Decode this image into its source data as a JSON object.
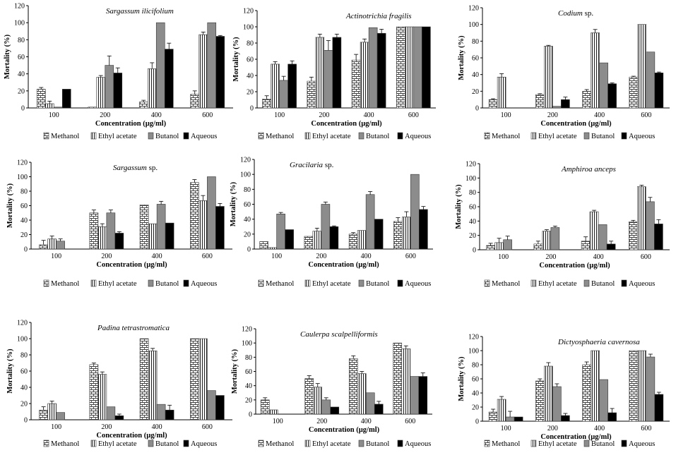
{
  "figure": {
    "y_axis_label": "Mortality (%)",
    "x_axis_label": "Concentration (µg/ml)",
    "y_ticks": [
      "0",
      "20",
      "40",
      "60",
      "80",
      "100",
      "120"
    ]
  },
  "chart_data": [
    {
      "type": "bar",
      "title": "Sargassum ilicifolium",
      "title_parts": [
        {
          "text": "Sargassum ilicifolium",
          "italic": true
        }
      ],
      "xlabel": "Concentration (µg/ml)",
      "ylabel": "Mortality (%)",
      "ylim": [
        0,
        120
      ],
      "categories": [
        "100",
        "200",
        "400",
        "600"
      ],
      "series": [
        {
          "name": "Methanol",
          "values": [
            22,
            1,
            7,
            16
          ],
          "errors": [
            2,
            0,
            2,
            4
          ]
        },
        {
          "name": "Ethyl acetate",
          "values": [
            5,
            36,
            46,
            86
          ],
          "errors": [
            3,
            2,
            7,
            3
          ]
        },
        {
          "name": "Butanol",
          "values": [
            1,
            50,
            100,
            100
          ],
          "errors": [
            0,
            11,
            0,
            0
          ]
        },
        {
          "name": "Aqueous",
          "values": [
            22,
            41,
            69,
            84
          ],
          "errors": [
            0,
            6,
            7,
            1
          ]
        }
      ]
    },
    {
      "type": "bar",
      "title": "Actinotrichia fragilis",
      "title_parts": [
        {
          "text": "Actinotrichia fragilis",
          "italic": true
        }
      ],
      "xlabel": "Concentration (µg/ml)",
      "ylabel": "Mortality (%)",
      "ylim": [
        0,
        120
      ],
      "categories": [
        "100",
        "200",
        "400",
        "600"
      ],
      "series": [
        {
          "name": "Methanol",
          "values": [
            11,
            33,
            59,
            100
          ],
          "errors": [
            4,
            5,
            7,
            0
          ]
        },
        {
          "name": "Ethyl acetate",
          "values": [
            54,
            87,
            81,
            100
          ],
          "errors": [
            3,
            4,
            4,
            0
          ]
        },
        {
          "name": "Butanol",
          "values": [
            34,
            71,
            99,
            100
          ],
          "errors": [
            5,
            12,
            0,
            0
          ]
        },
        {
          "name": "Aqueous",
          "values": [
            54,
            87,
            92,
            100
          ],
          "errors": [
            4,
            4,
            5,
            0
          ]
        }
      ]
    },
    {
      "type": "bar",
      "title": "Codium sp.",
      "title_parts": [
        {
          "text": "Codium",
          "italic": true
        },
        {
          "text": " sp.",
          "italic": false
        }
      ],
      "xlabel": "Concentration (µg/ml)",
      "ylabel": "Mortality (%)",
      "ylim": [
        0,
        120
      ],
      "categories": [
        "100",
        "200",
        "400",
        "600"
      ],
      "series": [
        {
          "name": "Methanol",
          "values": [
            10,
            16,
            20,
            37
          ],
          "errors": [
            1,
            1,
            2,
            1
          ]
        },
        {
          "name": "Ethyl acetate",
          "values": [
            37,
            74,
            90,
            100
          ],
          "errors": [
            4,
            1,
            4,
            0
          ]
        },
        {
          "name": "Butanol",
          "values": [
            0,
            2,
            54,
            67
          ],
          "errors": [
            0,
            0,
            0,
            0
          ]
        },
        {
          "name": "Aqueous",
          "values": [
            0,
            10,
            29,
            42
          ],
          "errors": [
            0,
            3,
            1,
            1
          ]
        }
      ]
    },
    {
      "type": "bar",
      "title": "Sargassum sp.",
      "title_parts": [
        {
          "text": "Sargassum",
          "italic": true
        },
        {
          "text": " sp.",
          "italic": false
        }
      ],
      "xlabel": "Concentration (µg/ml)",
      "ylabel": "Mortality (%)",
      "ylim": [
        0,
        120
      ],
      "categories": [
        "100",
        "200",
        "400",
        "600"
      ],
      "series": [
        {
          "name": "Methanol",
          "values": [
            6,
            50,
            61,
            92
          ],
          "errors": [
            6,
            4,
            0,
            4
          ]
        },
        {
          "name": "Ethyl acetate",
          "values": [
            14,
            31,
            35,
            67
          ],
          "errors": [
            4,
            4,
            0,
            7
          ]
        },
        {
          "name": "Butanol",
          "values": [
            11,
            50,
            62,
            100
          ],
          "errors": [
            3,
            4,
            4,
            0
          ]
        },
        {
          "name": "Aqueous",
          "values": [
            0,
            22,
            36,
            59
          ],
          "errors": [
            0,
            2,
            0,
            4
          ]
        }
      ]
    },
    {
      "type": "bar",
      "title": "Gracilaria sp.",
      "title_parts": [
        {
          "text": "Gracilaria",
          "italic": true
        },
        {
          "text": " sp.",
          "italic": false
        }
      ],
      "xlabel": "Concentration (µg/ml)",
      "ylabel": "Mortality (%)",
      "ylim": [
        0,
        120
      ],
      "categories": [
        "100",
        "200",
        "400",
        "600"
      ],
      "series": [
        {
          "name": "Methanol",
          "values": [
            10,
            17,
            20,
            37
          ],
          "errors": [
            0,
            0,
            2,
            5
          ]
        },
        {
          "name": "Ethyl acetate",
          "values": [
            2,
            24,
            25,
            43
          ],
          "errors": [
            0,
            4,
            0,
            7
          ]
        },
        {
          "name": "Butanol",
          "values": [
            47,
            60,
            73,
            100
          ],
          "errors": [
            2,
            3,
            4,
            0
          ]
        },
        {
          "name": "Aqueous",
          "values": [
            26,
            30,
            40,
            53
          ],
          "errors": [
            0,
            1,
            0,
            4
          ]
        }
      ]
    },
    {
      "type": "bar",
      "title": "Amphiroa anceps",
      "title_parts": [
        {
          "text": "Amphiroa anceps",
          "italic": true
        }
      ],
      "xlabel": "Concentration (µg/ml)",
      "ylabel": "Mortality (%)",
      "ylim": [
        0,
        120
      ],
      "categories": [
        "100",
        "200",
        "400",
        "600"
      ],
      "series": [
        {
          "name": "Methanol",
          "values": [
            6,
            8,
            12,
            39
          ],
          "errors": [
            3,
            4,
            6,
            2
          ]
        },
        {
          "name": "Ethyl acetate",
          "values": [
            10,
            26,
            53,
            88
          ],
          "errors": [
            6,
            2,
            2,
            2
          ]
        },
        {
          "name": "Butanol",
          "values": [
            14,
            31,
            35,
            67
          ],
          "errors": [
            5,
            2,
            0,
            6
          ]
        },
        {
          "name": "Aqueous",
          "values": [
            0,
            0,
            8,
            36
          ],
          "errors": [
            0,
            0,
            4,
            6
          ]
        }
      ]
    },
    {
      "type": "bar",
      "title": "Padina tetrastromatica",
      "title_parts": [
        {
          "text": "Padina tetrastromatica",
          "italic": true
        }
      ],
      "xlabel": "Concentration (µg/ml)",
      "ylabel": "Mortality (%)",
      "ylim": [
        0,
        120
      ],
      "categories": [
        "100",
        "200",
        "400",
        "600"
      ],
      "series": [
        {
          "name": "Methanol",
          "values": [
            12,
            68,
            100,
            100
          ],
          "errors": [
            4,
            2,
            0,
            0
          ]
        },
        {
          "name": "Ethyl acetate",
          "values": [
            20,
            56,
            85,
            100
          ],
          "errors": [
            3,
            3,
            3,
            0
          ]
        },
        {
          "name": "Butanol",
          "values": [
            9,
            16,
            19,
            36
          ],
          "errors": [
            0,
            0,
            0,
            0
          ]
        },
        {
          "name": "Aqueous",
          "values": [
            0,
            5,
            12,
            30
          ],
          "errors": [
            0,
            2,
            6,
            0
          ]
        }
      ]
    },
    {
      "type": "bar",
      "title": "Caulerpa scalpelliformis",
      "title_parts": [
        {
          "text": "Caulerpa scalpelliformis",
          "italic": true
        }
      ],
      "xlabel": "Concentration (µg/ml)",
      "ylabel": "Mortality (%)",
      "ylim": [
        0,
        120
      ],
      "categories": [
        "100",
        "200",
        "400",
        "600"
      ],
      "series": [
        {
          "name": "Methanol",
          "values": [
            20,
            50,
            78,
            100
          ],
          "errors": [
            3,
            4,
            4,
            0
          ]
        },
        {
          "name": "Ethyl acetate",
          "values": [
            6,
            38,
            57,
            92
          ],
          "errors": [
            0,
            5,
            3,
            4
          ]
        },
        {
          "name": "Butanol",
          "values": [
            0,
            20,
            30,
            53
          ],
          "errors": [
            0,
            3,
            0,
            0
          ]
        },
        {
          "name": "Aqueous",
          "values": [
            0,
            10,
            14,
            53
          ],
          "errors": [
            0,
            0,
            4,
            5
          ]
        }
      ]
    },
    {
      "type": "bar",
      "title": "Dictyosphaeria cavernosa",
      "title_parts": [
        {
          "text": "Dictyosphaeria cavernosa",
          "italic": true
        }
      ],
      "xlabel": "Concentration (µg/ml)",
      "ylabel": "Mortality (%)",
      "ylim": [
        0,
        120
      ],
      "categories": [
        "100",
        "200",
        "400",
        "600"
      ],
      "series": [
        {
          "name": "Methanol",
          "values": [
            13,
            57,
            80,
            100
          ],
          "errors": [
            4,
            3,
            4,
            0
          ]
        },
        {
          "name": "Ethyl acetate",
          "values": [
            31,
            78,
            100,
            100
          ],
          "errors": [
            4,
            5,
            0,
            0
          ]
        },
        {
          "name": "Butanol",
          "values": [
            6,
            49,
            59,
            91
          ],
          "errors": [
            8,
            4,
            0,
            4
          ]
        },
        {
          "name": "Aqueous",
          "values": [
            6,
            8,
            12,
            38
          ],
          "errors": [
            0,
            3,
            6,
            3
          ]
        }
      ]
    }
  ]
}
